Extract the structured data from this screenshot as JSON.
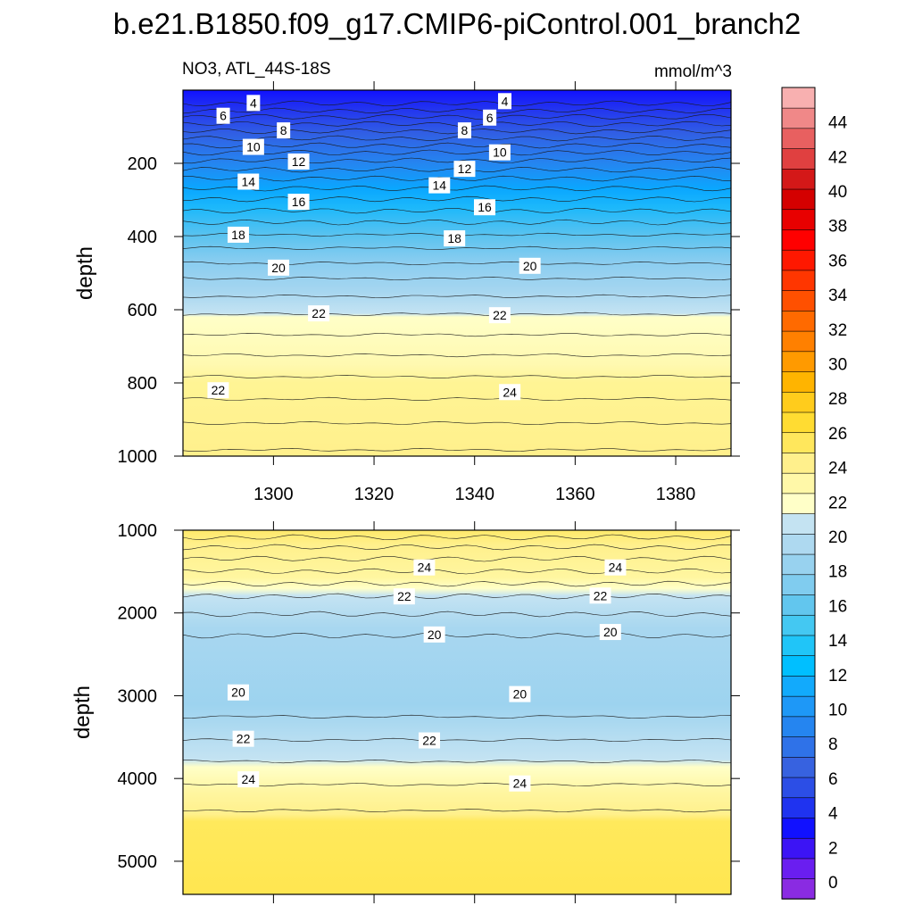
{
  "chart_data": [
    {
      "type": "heatmap",
      "panel": "upper",
      "title": "b.e21.B1850.f09_g17.CMIP6-piControl.001_branch2",
      "left_string": "NO3, ATL_44S-18S",
      "right_string": "mmol/m^3",
      "ylabel": "depth",
      "xlim": [
        1282,
        1391
      ],
      "ylim": [
        1000,
        0
      ],
      "xticks": [
        "1300",
        "1320",
        "1340",
        "1360",
        "1380"
      ],
      "yticks": [
        "200",
        "400",
        "600",
        "800",
        "1000"
      ],
      "contour_labels": [
        {
          "text": "4",
          "x": 1296,
          "y": 35
        },
        {
          "text": "6",
          "x": 1290,
          "y": 70
        },
        {
          "text": "8",
          "x": 1302,
          "y": 110
        },
        {
          "text": "10",
          "x": 1296,
          "y": 155
        },
        {
          "text": "12",
          "x": 1305,
          "y": 195
        },
        {
          "text": "14",
          "x": 1295,
          "y": 250
        },
        {
          "text": "16",
          "x": 1305,
          "y": 305
        },
        {
          "text": "18",
          "x": 1293,
          "y": 395
        },
        {
          "text": "20",
          "x": 1301,
          "y": 485
        },
        {
          "text": "22",
          "x": 1289,
          "y": 820
        },
        {
          "text": "22",
          "x": 1309,
          "y": 610
        },
        {
          "text": "4",
          "x": 1346,
          "y": 30
        },
        {
          "text": "6",
          "x": 1343,
          "y": 75
        },
        {
          "text": "8",
          "x": 1338,
          "y": 110
        },
        {
          "text": "10",
          "x": 1345,
          "y": 170
        },
        {
          "text": "12",
          "x": 1338,
          "y": 215
        },
        {
          "text": "14",
          "x": 1333,
          "y": 260
        },
        {
          "text": "16",
          "x": 1342,
          "y": 320
        },
        {
          "text": "18",
          "x": 1336,
          "y": 405
        },
        {
          "text": "20",
          "x": 1351,
          "y": 480
        },
        {
          "text": "22",
          "x": 1345,
          "y": 615
        },
        {
          "text": "24",
          "x": 1347,
          "y": 825
        }
      ]
    },
    {
      "type": "heatmap",
      "panel": "lower",
      "ylabel": "depth",
      "xlim": [
        1282,
        1391
      ],
      "ylim": [
        5400,
        1000
      ],
      "yticks": [
        "1000",
        "2000",
        "3000",
        "4000",
        "5000"
      ],
      "contour_labels": [
        {
          "text": "24",
          "x": 1330,
          "y": 1450
        },
        {
          "text": "24",
          "x": 1368,
          "y": 1450
        },
        {
          "text": "22",
          "x": 1326,
          "y": 1800
        },
        {
          "text": "22",
          "x": 1365,
          "y": 1790
        },
        {
          "text": "20",
          "x": 1332,
          "y": 2260
        },
        {
          "text": "20",
          "x": 1367,
          "y": 2230
        },
        {
          "text": "20",
          "x": 1293,
          "y": 2960
        },
        {
          "text": "20",
          "x": 1349,
          "y": 2980
        },
        {
          "text": "22",
          "x": 1294,
          "y": 3520
        },
        {
          "text": "22",
          "x": 1331,
          "y": 3540
        },
        {
          "text": "24",
          "x": 1295,
          "y": 4010
        },
        {
          "text": "24",
          "x": 1349,
          "y": 4060
        }
      ]
    }
  ],
  "colorbar": {
    "labels": [
      "0",
      "2",
      "4",
      "6",
      "8",
      "10",
      "12",
      "14",
      "16",
      "18",
      "20",
      "22",
      "24",
      "26",
      "28",
      "30",
      "32",
      "34",
      "36",
      "38",
      "40",
      "42",
      "44"
    ],
    "colors": [
      "#8a2be2",
      "#6a1ef0",
      "#3c14f5",
      "#1111ff",
      "#1f33f0",
      "#2c4ee6",
      "#3762e0",
      "#2f72e8",
      "#2585f0",
      "#1e98f7",
      "#12aafc",
      "#00bfff",
      "#20c5f8",
      "#44c8f2",
      "#62c6ee",
      "#80ccef",
      "#98d2ef",
      "#aed9f0",
      "#c4e3f2",
      "#ffffc8",
      "#fff8a8",
      "#fff08c",
      "#ffe75c",
      "#ffdc32",
      "#ffcc1c",
      "#ffb400",
      "#ff9a00",
      "#ff8000",
      "#ff6a00",
      "#ff5000",
      "#ff3600",
      "#ff1800",
      "#ff0000",
      "#e80000",
      "#d40000",
      "#d41818",
      "#e04040",
      "#e86060",
      "#f08888",
      "#f8b0b0"
    ]
  }
}
